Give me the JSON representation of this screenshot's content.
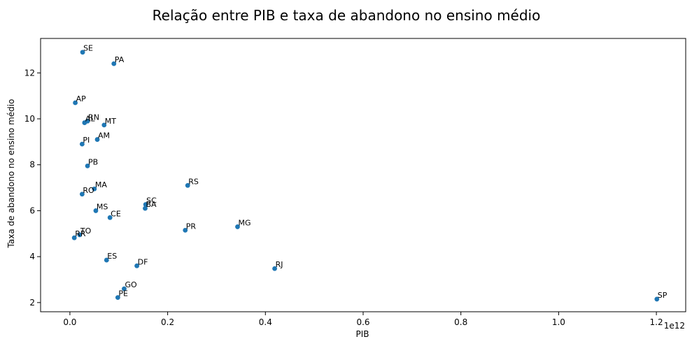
{
  "chart_data": {
    "type": "scatter",
    "title": "Relação entre PIB e taxa de abandono no ensino médio",
    "xlabel": "PIB",
    "ylabel": "Taxa de abandono no ensino médio",
    "x_offset_text": "1e12",
    "x_scale_factor": 1000000000000.0,
    "xlim": [
      -60000000000.0,
      1260000000000.0
    ],
    "ylim": [
      1.6,
      13.5
    ],
    "x_ticks": [
      0.0,
      0.2,
      0.4,
      0.6,
      0.8,
      1.0,
      1.2
    ],
    "x_tick_labels": [
      "0.0",
      "0.2",
      "0.4",
      "0.6",
      "0.8",
      "1.0",
      "1.2"
    ],
    "y_ticks": [
      2,
      4,
      6,
      8,
      10,
      12
    ],
    "y_tick_labels": [
      "2",
      "4",
      "6",
      "8",
      "10",
      "12"
    ],
    "grid": false,
    "marker_color": "#1f77b4",
    "points": [
      {
        "label": "SE",
        "x": 26000000000.0,
        "y": 12.9
      },
      {
        "label": "PA",
        "x": 90000000000.0,
        "y": 12.4
      },
      {
        "label": "AP",
        "x": 11000000000.0,
        "y": 10.7
      },
      {
        "label": "RN",
        "x": 36000000000.0,
        "y": 9.9
      },
      {
        "label": "AL",
        "x": 30000000000.0,
        "y": 9.83
      },
      {
        "label": "MT",
        "x": 70000000000.0,
        "y": 9.73
      },
      {
        "label": "AM",
        "x": 56000000000.0,
        "y": 9.1
      },
      {
        "label": "PI",
        "x": 25000000000.0,
        "y": 8.9
      },
      {
        "label": "PB",
        "x": 36000000000.0,
        "y": 7.95
      },
      {
        "label": "RS",
        "x": 241000000000.0,
        "y": 7.1
      },
      {
        "label": "MA",
        "x": 50000000000.0,
        "y": 6.95
      },
      {
        "label": "RO",
        "x": 25000000000.0,
        "y": 6.72
      },
      {
        "label": "SC",
        "x": 155000000000.0,
        "y": 6.27
      },
      {
        "label": "BA",
        "x": 154000000000.0,
        "y": 6.1
      },
      {
        "label": "MS",
        "x": 53000000000.0,
        "y": 6.0
      },
      {
        "label": "CE",
        "x": 82000000000.0,
        "y": 5.7
      },
      {
        "label": "MG",
        "x": 343000000000.0,
        "y": 5.3
      },
      {
        "label": "PR",
        "x": 236000000000.0,
        "y": 5.15
      },
      {
        "label": "TO",
        "x": 20000000000.0,
        "y": 4.95
      },
      {
        "label": "RR",
        "x": 9000000000.0,
        "y": 4.82
      },
      {
        "label": "ES",
        "x": 75000000000.0,
        "y": 3.85
      },
      {
        "label": "DF",
        "x": 137000000000.0,
        "y": 3.6
      },
      {
        "label": "RJ",
        "x": 419000000000.0,
        "y": 3.48
      },
      {
        "label": "GO",
        "x": 111000000000.0,
        "y": 2.6
      },
      {
        "label": "PE",
        "x": 98000000000.0,
        "y": 2.22
      },
      {
        "label": "SP",
        "x": 1201000000000.0,
        "y": 2.15
      }
    ]
  }
}
